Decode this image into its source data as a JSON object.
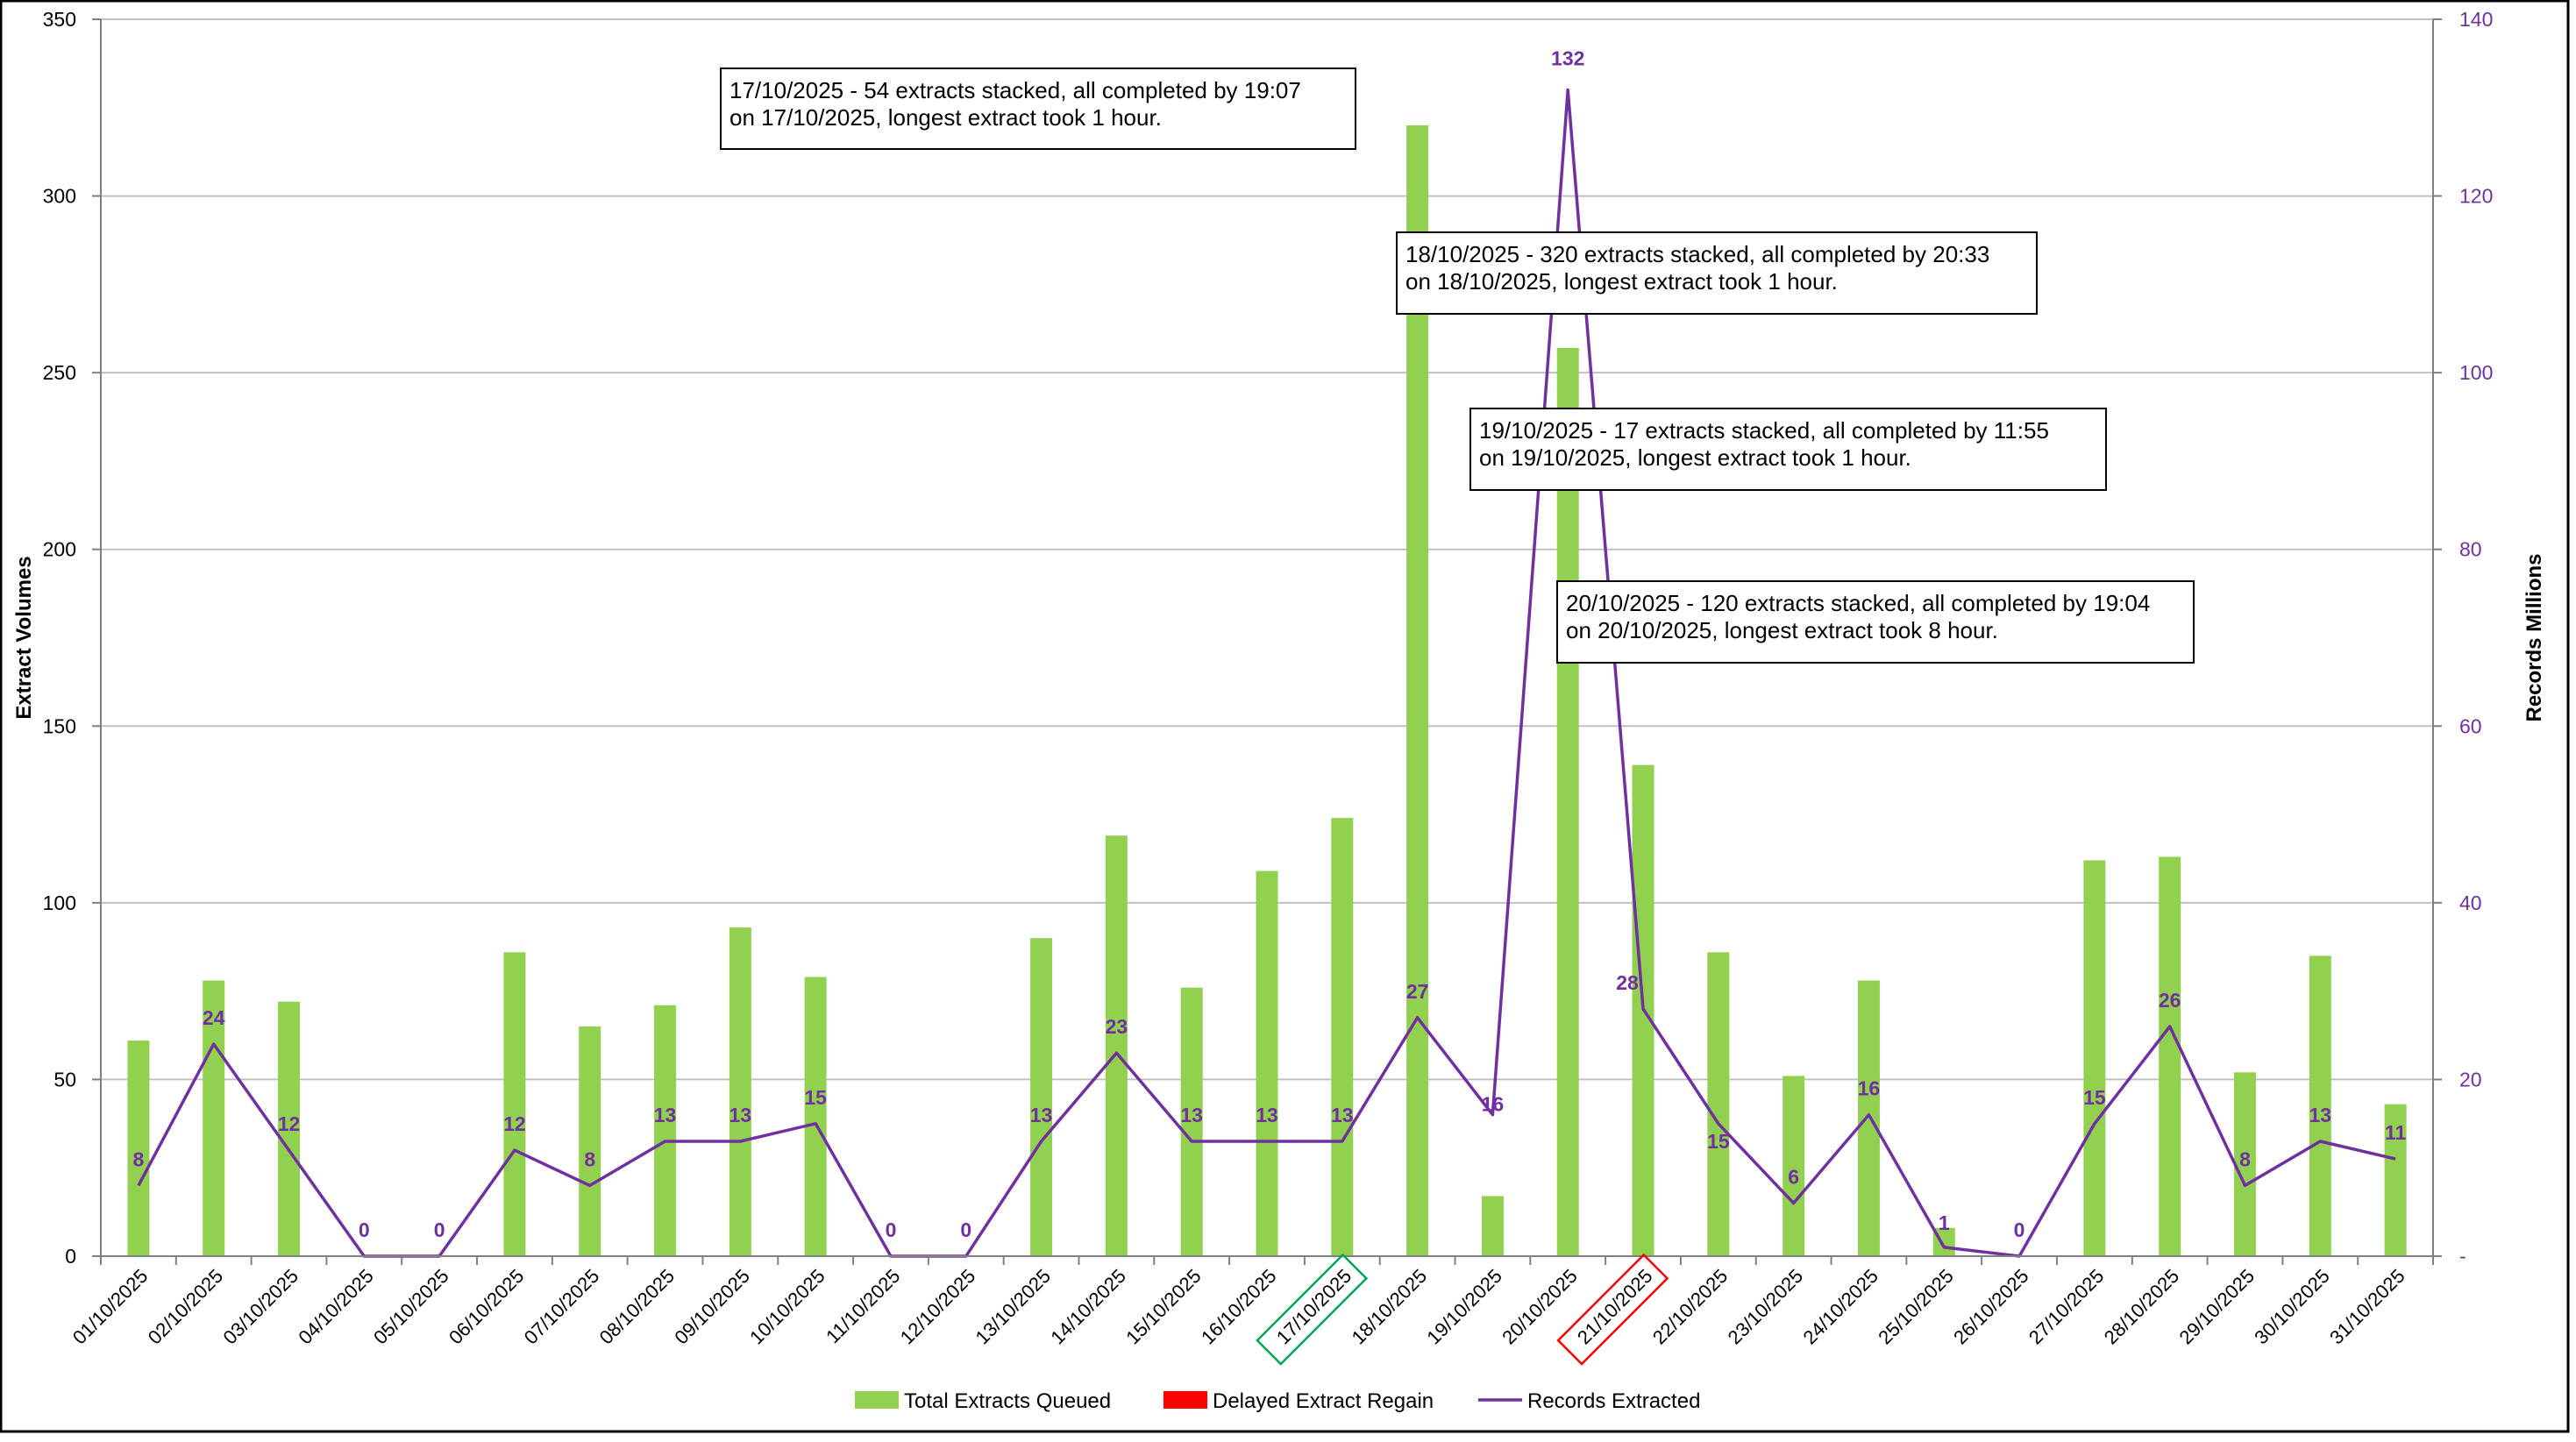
{
  "chart_data": {
    "type": "bar+line",
    "categories": [
      "01/10/2025",
      "02/10/2025",
      "03/10/2025",
      "04/10/2025",
      "05/10/2025",
      "06/10/2025",
      "07/10/2025",
      "08/10/2025",
      "09/10/2025",
      "10/10/2025",
      "11/10/2025",
      "12/10/2025",
      "13/10/2025",
      "14/10/2025",
      "15/10/2025",
      "16/10/2025",
      "17/10/2025",
      "18/10/2025",
      "19/10/2025",
      "20/10/2025",
      "21/10/2025",
      "22/10/2025",
      "23/10/2025",
      "24/10/2025",
      "25/10/2025",
      "26/10/2025",
      "27/10/2025",
      "28/10/2025",
      "29/10/2025",
      "30/10/2025",
      "31/10/2025"
    ],
    "series": [
      {
        "name": "Total Extracts Queued",
        "type": "bar",
        "axis": "left",
        "color": "#92d050",
        "values": [
          61,
          78,
          72,
          0,
          0,
          86,
          65,
          71,
          93,
          79,
          0,
          0,
          90,
          119,
          76,
          109,
          124,
          320,
          17,
          257,
          139,
          86,
          51,
          78,
          8,
          0,
          112,
          113,
          52,
          85,
          43
        ]
      },
      {
        "name": "Delayed Extract Regain",
        "type": "bar",
        "axis": "left",
        "color": "#ff0000",
        "values": [
          0,
          0,
          0,
          0,
          0,
          0,
          0,
          0,
          0,
          0,
          0,
          0,
          0,
          0,
          0,
          0,
          0,
          0,
          0,
          0,
          0,
          0,
          0,
          0,
          0,
          0,
          0,
          0,
          0,
          0,
          0
        ]
      },
      {
        "name": "Records Extracted",
        "type": "line",
        "axis": "right",
        "color": "#7030a0",
        "values": [
          8,
          24,
          12,
          0,
          0,
          12,
          8,
          13,
          13,
          15,
          0,
          0,
          13,
          23,
          13,
          13,
          13,
          27,
          16,
          132,
          28,
          15,
          6,
          16,
          1,
          0,
          15,
          26,
          8,
          13,
          11
        ]
      }
    ],
    "ylabel": "Extract Volumes",
    "y2label": "Records Millions",
    "ylim": [
      0,
      350
    ],
    "yticks": [
      0,
      50,
      100,
      150,
      200,
      250,
      300,
      350
    ],
    "y2lim": [
      0,
      140
    ],
    "y2ticks": [
      "-",
      "20",
      "40",
      "60",
      "80",
      "100",
      "120",
      "140"
    ],
    "grid": true,
    "legend_position": "bottom",
    "highlighted_categories": [
      {
        "category": "17/10/2025",
        "color": "#00a651"
      },
      {
        "category": "21/10/2025",
        "color": "#ff0000"
      }
    ],
    "annotations": [
      {
        "line1": "17/10/2025 - 54 extracts stacked, all completed by 19:07",
        "line2": "on 17/10/2025, longest extract took 1 hour."
      },
      {
        "line1": "18/10/2025 - 320 extracts stacked, all completed by 20:33",
        "line2": "on 18/10/2025, longest extract took 1 hour."
      },
      {
        "line1": "19/10/2025 - 17 extracts stacked, all completed by 11:55",
        "line2": "on 19/10/2025, longest extract took 1 hour."
      },
      {
        "line1": "20/10/2025 - 120 extracts stacked, all completed by 19:04",
        "line2": "on 20/10/2025, longest extract took 8 hour."
      }
    ]
  }
}
